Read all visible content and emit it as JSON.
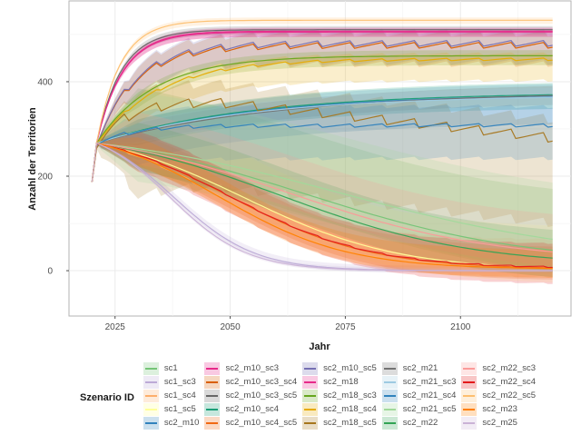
{
  "chart_data": {
    "type": "line",
    "title": "",
    "xlabel": "Jahr",
    "ylabel": "Anzahl der Territorien",
    "xlim": [
      2015,
      2124
    ],
    "ylim": [
      -96,
      571
    ],
    "x_ticks": [
      2025,
      2050,
      2075,
      2100
    ],
    "y_ticks": [
      0,
      200,
      400
    ],
    "x_tick_labels": [
      "2025",
      "2050",
      "2075",
      "2100"
    ],
    "y_tick_labels": [
      "0",
      "200",
      "400"
    ],
    "grid": true,
    "legend_title": "Szenario ID",
    "legend_position": "bottom",
    "x_start": 2020,
    "x_end": 2120,
    "start_value": 188,
    "series": [
      {
        "name": "sc1",
        "color": "#74c476",
        "shape": "decline",
        "plateau": 15,
        "rate": 0.035,
        "lo": -45,
        "hi": 130,
        "saw": 0
      },
      {
        "name": "sc1_sc3",
        "color": "#bcaad6",
        "shape": "decline",
        "plateau": 0,
        "rate": 0.095,
        "lo": -5,
        "hi": 10,
        "saw": 0
      },
      {
        "name": "sc1_sc4",
        "color": "#fdae6b",
        "shape": "decline",
        "plateau": 5,
        "rate": 0.06,
        "lo": -20,
        "hi": 60,
        "saw": 4
      },
      {
        "name": "sc1_sc5",
        "color": "#ffff99",
        "shape": "decline",
        "plateau": 0,
        "rate": 0.05,
        "lo": -30,
        "hi": 90,
        "saw": 0
      },
      {
        "name": "sc2_m10",
        "color": "#3182bd",
        "shape": "flat",
        "plateau": 375,
        "rate": 0.03,
        "lo": -60,
        "hi": 25,
        "saw": 0
      },
      {
        "name": "sc2_m10_sc3",
        "color": "#e7298a",
        "shape": "grow",
        "plateau": 507,
        "rate": 0.18,
        "lo": -12,
        "hi": 8,
        "saw": 0
      },
      {
        "name": "sc2_m10_sc3_sc4",
        "color": "#d95f02",
        "shape": "grow",
        "plateau": 478,
        "rate": 0.12,
        "lo": -40,
        "hi": 25,
        "saw": 14
      },
      {
        "name": "sc2_m10_sc3_sc5",
        "color": "#666666",
        "shape": "grow",
        "plateau": 510,
        "rate": 0.19,
        "lo": -10,
        "hi": 8,
        "saw": 0
      },
      {
        "name": "sc2_m10_sc4",
        "color": "#1b9e77",
        "shape": "flat",
        "plateau": 378,
        "rate": 0.03,
        "lo": -30,
        "hi": 25,
        "saw": 0
      },
      {
        "name": "sc2_m10_sc4_sc5",
        "color": "#f16913",
        "shape": "decline",
        "plateau": 3,
        "rate": 0.055,
        "lo": -25,
        "hi": 45,
        "saw": 0
      },
      {
        "name": "sc2_m10_sc5",
        "color": "#7570b3",
        "shape": "grow",
        "plateau": 482,
        "rate": 0.12,
        "lo": -40,
        "hi": 25,
        "saw": 14
      },
      {
        "name": "sc2_m18",
        "color": "#e7298a",
        "shape": "grow",
        "plateau": 505,
        "rate": 0.18,
        "lo": -10,
        "hi": 8,
        "saw": 0
      },
      {
        "name": "sc2_m18_sc3",
        "color": "#66a61e",
        "shape": "grow",
        "plateau": 455,
        "rate": 0.08,
        "lo": -20,
        "hi": 12,
        "saw": 0
      },
      {
        "name": "sc2_m18_sc4",
        "color": "#e6ab02",
        "shape": "grow",
        "plateau": 448,
        "rate": 0.075,
        "lo": -45,
        "hi": 12,
        "saw": 6
      },
      {
        "name": "sc2_m18_sc5",
        "color": "#a6761d",
        "shape": "peak",
        "plateau": 265,
        "rate": 0.02,
        "lo": -180,
        "hi": 40,
        "saw": 22
      },
      {
        "name": "sc2_m21",
        "color": "#737373",
        "shape": "flat",
        "plateau": 380,
        "rate": 0.025,
        "lo": -20,
        "hi": 20,
        "saw": 0
      },
      {
        "name": "sc2_m21_sc3",
        "color": "#9ecae1",
        "shape": "flat",
        "plateau": 372,
        "rate": 0.03,
        "lo": -25,
        "hi": 20,
        "saw": 0
      },
      {
        "name": "sc2_m21_sc4",
        "color": "#3182bd",
        "shape": "flat2",
        "plateau": 308,
        "rate": 0.03,
        "lo": -70,
        "hi": 40,
        "saw": 8
      },
      {
        "name": "sc2_m21_sc5",
        "color": "#a1d99b",
        "shape": "decline",
        "plateau": 20,
        "rate": 0.03,
        "lo": -70,
        "hi": 120,
        "saw": 0
      },
      {
        "name": "sc2_m22",
        "color": "#31a354",
        "shape": "decline",
        "plateau": 10,
        "rate": 0.04,
        "lo": -40,
        "hi": 60,
        "saw": 0
      },
      {
        "name": "sc2_m22_sc3",
        "color": "#fb9a99",
        "shape": "decline",
        "plateau": 20,
        "rate": 0.038,
        "lo": -30,
        "hi": 80,
        "saw": 0
      },
      {
        "name": "sc2_m22_sc4",
        "color": "#e31a1c",
        "shape": "decline",
        "plateau": 5,
        "rate": 0.055,
        "lo": -35,
        "hi": 50,
        "saw": 3
      },
      {
        "name": "sc2_m22_sc5",
        "color": "#fdbf6f",
        "shape": "grow",
        "plateau": 530,
        "rate": 0.2,
        "lo": -8,
        "hi": 6,
        "saw": 0
      },
      {
        "name": "sc2_m23",
        "color": "#ff7f00",
        "shape": "decline",
        "plateau": 3,
        "rate": 0.06,
        "lo": -20,
        "hi": 40,
        "saw": 0
      },
      {
        "name": "sc2_m25",
        "color": "#cab2d6",
        "shape": "decline",
        "plateau": 0,
        "rate": 0.1,
        "lo": -4,
        "hi": 6,
        "saw": 0
      }
    ]
  }
}
